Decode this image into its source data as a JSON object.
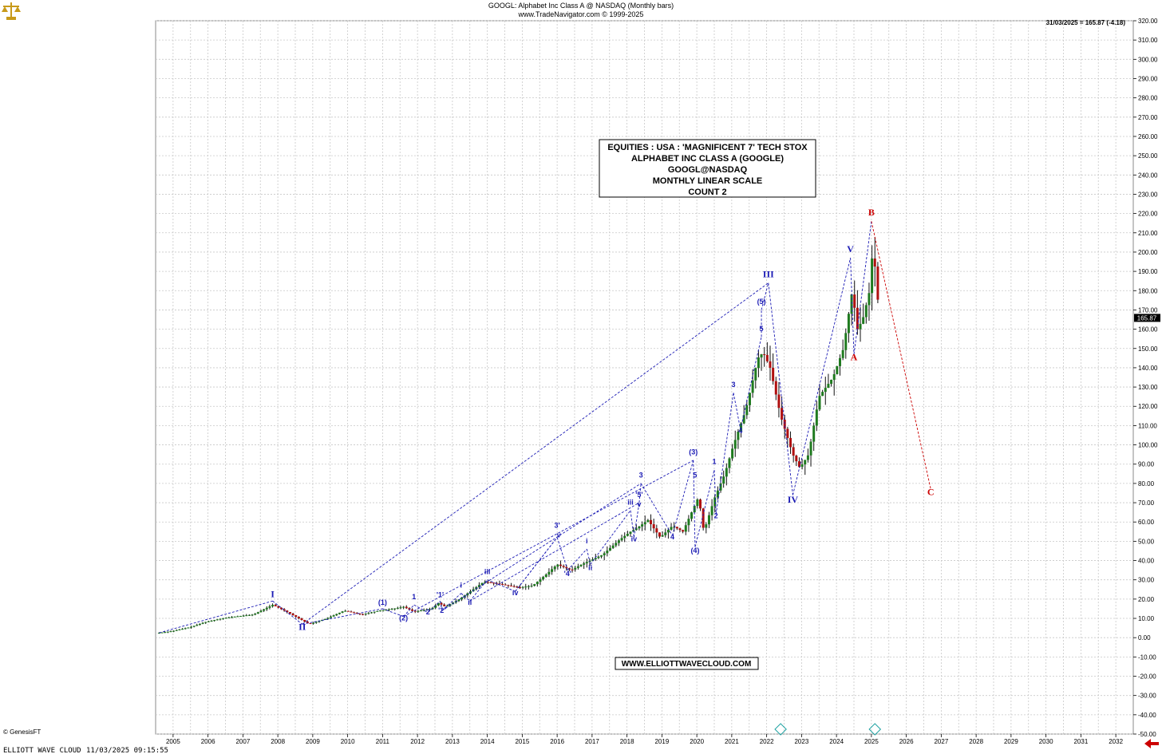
{
  "header": {
    "title": "GOOGL:  Alphabet Inc Class A @ NASDAQ  (Monthly bars)",
    "source": "www.TradeNavigator.com © 1999-2025",
    "last_quote": "31/03/2025 = 165.87 (-4.18)",
    "price_tag": "165.87"
  },
  "info_box": {
    "lines": [
      "EQUITIES : USA : 'MAGNIFICENT 7' TECH STOX",
      "ALPHABET INC CLASS A (GOOGLE)",
      "GOOGL@NASDAQ",
      "MONTHLY LINEAR SCALE",
      "COUNT 2"
    ]
  },
  "website": "WWW.ELLIOTTWAVECLOUD.COM",
  "footer": {
    "left": "ELLIOTT WAVE CLOUD",
    "timestamp": "11/03/2025 09:15:55",
    "vendor": "© GenesisFT"
  },
  "colors": {
    "wave": "#1a1ab4",
    "correction": "#cc0000",
    "bars": "#111111",
    "up_bar": "#1f7a1f",
    "down_bar": "#b01010",
    "grid": "#c8c8c8",
    "marker": "#1aa0a0"
  },
  "chart_data": {
    "type": "line",
    "scale": "linear",
    "ylim": [
      -50,
      320
    ],
    "y_ticks": [
      "320.00",
      "310.00",
      "300.00",
      "290.00",
      "280.00",
      "270.00",
      "260.00",
      "250.00",
      "240.00",
      "230.00",
      "220.00",
      "210.00",
      "200.00",
      "190.00",
      "180.00",
      "170.00",
      "160.00",
      "150.00",
      "140.00",
      "130.00",
      "120.00",
      "110.00",
      "100.00",
      "90.00",
      "80.00",
      "70.00",
      "60.00",
      "50.00",
      "40.00",
      "30.00",
      "20.00",
      "10.00",
      "0.00",
      "-10.00",
      "-20.00",
      "-30.00",
      "-40.00",
      "-50.00"
    ],
    "x_labels": [
      "2005",
      "2006",
      "2007",
      "2008",
      "2009",
      "2010",
      "2011",
      "2012",
      "2013",
      "2014",
      "2015",
      "2016",
      "2017",
      "2018",
      "2019",
      "2020",
      "2021",
      "2022",
      "2023",
      "2024",
      "2025",
      "2026",
      "2027",
      "2028",
      "2029",
      "2030",
      "2031",
      "2032"
    ],
    "grid": true,
    "series": [
      {
        "values": [
          [
            2004.6,
            2.5
          ],
          [
            2005.0,
            3.5
          ],
          [
            2005.5,
            5.5
          ],
          [
            2005.9,
            8
          ],
          [
            2006.4,
            10
          ],
          [
            2006.8,
            11
          ],
          [
            2007.3,
            12
          ],
          [
            2007.85,
            17
          ],
          [
            2008.3,
            13
          ],
          [
            2008.9,
            7
          ],
          [
            2009.4,
            10
          ],
          [
            2009.9,
            14
          ],
          [
            2010.4,
            12
          ],
          [
            2010.9,
            14
          ],
          [
            2011.3,
            15
          ],
          [
            2011.6,
            16
          ],
          [
            2011.9,
            13.5
          ],
          [
            2012.4,
            15
          ],
          [
            2012.6,
            18
          ],
          [
            2012.8,
            16
          ],
          [
            2013.2,
            20
          ],
          [
            2013.9,
            29
          ],
          [
            2014.3,
            28
          ],
          [
            2014.9,
            26
          ],
          [
            2015.3,
            27
          ],
          [
            2015.7,
            33
          ],
          [
            2016.0,
            38
          ],
          [
            2016.4,
            35
          ],
          [
            2016.7,
            38
          ],
          [
            2017.3,
            43
          ],
          [
            2017.8,
            51
          ],
          [
            2018.1,
            55
          ],
          [
            2018.3,
            57
          ],
          [
            2018.6,
            61
          ],
          [
            2018.95,
            52
          ],
          [
            2019.3,
            58
          ],
          [
            2019.6,
            55
          ],
          [
            2019.9,
            67
          ],
          [
            2020.05,
            73
          ],
          [
            2020.2,
            55
          ],
          [
            2020.5,
            72
          ],
          [
            2020.8,
            85
          ],
          [
            2021.05,
            100
          ],
          [
            2021.4,
            118
          ],
          [
            2021.75,
            145
          ],
          [
            2021.9,
            148
          ],
          [
            2022.1,
            140
          ],
          [
            2022.4,
            115
          ],
          [
            2022.75,
            95
          ],
          [
            2022.95,
            88
          ],
          [
            2023.2,
            95
          ],
          [
            2023.5,
            125
          ],
          [
            2023.9,
            135
          ],
          [
            2024.2,
            150
          ],
          [
            2024.45,
            180
          ],
          [
            2024.6,
            160
          ],
          [
            2024.75,
            165
          ],
          [
            2024.95,
            180
          ],
          [
            2025.05,
            205
          ],
          [
            2025.15,
            180
          ],
          [
            2025.25,
            166
          ]
        ]
      }
    ],
    "wave_labels": [
      {
        "text": "I",
        "x": 2007.85,
        "y": 21
      },
      {
        "text": "II",
        "x": 2008.7,
        "y": 4
      },
      {
        "text": "(1)",
        "x": 2011.0,
        "y": 17
      },
      {
        "text": "(2)",
        "x": 2011.6,
        "y": 9
      },
      {
        "text": "1",
        "x": 2011.9,
        "y": 20
      },
      {
        "text": "2",
        "x": 2012.3,
        "y": 12
      },
      {
        "text": "'1'",
        "x": 2012.65,
        "y": 21
      },
      {
        "text": "'2'",
        "x": 2012.7,
        "y": 13
      },
      {
        "text": "i",
        "x": 2013.25,
        "y": 26
      },
      {
        "text": "ii",
        "x": 2013.5,
        "y": 17
      },
      {
        "text": "iii",
        "x": 2014.0,
        "y": 33
      },
      {
        "text": "iv",
        "x": 2014.8,
        "y": 22
      },
      {
        "text": "3'",
        "x": 2016.0,
        "y": 57
      },
      {
        "text": "v",
        "x": 2016.05,
        "y": 52
      },
      {
        "text": "'4'",
        "x": 2016.3,
        "y": 32
      },
      {
        "text": "i",
        "x": 2016.85,
        "y": 49
      },
      {
        "text": "ii",
        "x": 2016.95,
        "y": 35
      },
      {
        "text": "iii",
        "x": 2018.1,
        "y": 69
      },
      {
        "text": "iv",
        "x": 2018.2,
        "y": 50
      },
      {
        "text": "'5'",
        "x": 2018.35,
        "y": 73
      },
      {
        "text": "v",
        "x": 2018.35,
        "y": 68
      },
      {
        "text": "3",
        "x": 2018.4,
        "y": 83
      },
      {
        "text": "4",
        "x": 2019.3,
        "y": 51
      },
      {
        "text": "(3)",
        "x": 2019.9,
        "y": 95
      },
      {
        "text": "5",
        "x": 2019.95,
        "y": 83
      },
      {
        "text": "(4)",
        "x": 2019.95,
        "y": 44
      },
      {
        "text": "1",
        "x": 2020.5,
        "y": 90
      },
      {
        "text": "2",
        "x": 2020.55,
        "y": 62
      },
      {
        "text": "3",
        "x": 2021.05,
        "y": 130
      },
      {
        "text": "4",
        "x": 2021.25,
        "y": 106
      },
      {
        "text": "5",
        "x": 2021.85,
        "y": 159
      },
      {
        "text": "(5)",
        "x": 2021.85,
        "y": 173
      },
      {
        "text": "III",
        "x": 2022.05,
        "y": 187
      },
      {
        "text": "IV",
        "x": 2022.75,
        "y": 70
      },
      {
        "text": "V",
        "x": 2024.4,
        "y": 200
      },
      {
        "text": "A",
        "x": 2024.5,
        "y": 144
      },
      {
        "text": "B",
        "x": 2025.0,
        "y": 219
      },
      {
        "text": "C",
        "x": 2026.7,
        "y": 74
      }
    ]
  }
}
